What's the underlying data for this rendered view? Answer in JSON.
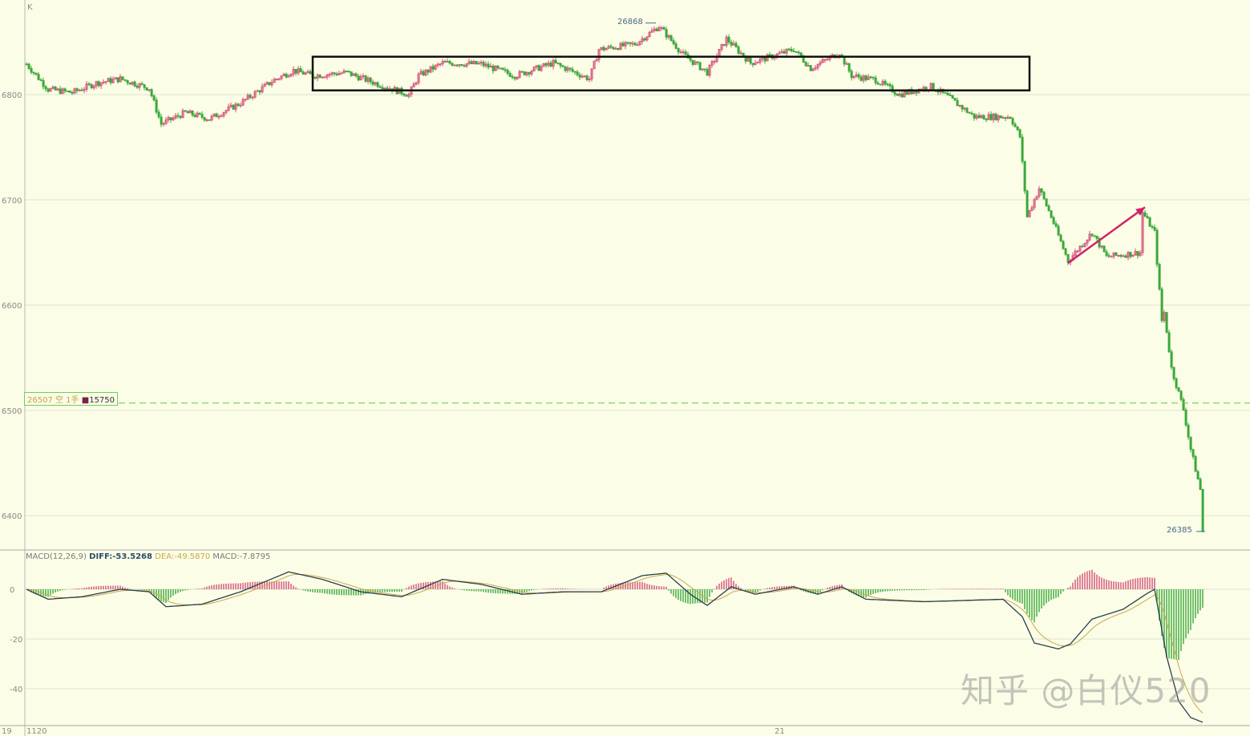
{
  "panel_label": "K",
  "watermark": "知乎 @白仪520",
  "position_marker": {
    "price_text": "26507",
    "side_text": "空 1手",
    "value_text": "15750",
    "price": 26507
  },
  "macd_legend": {
    "name": "MACD(12,26,9)",
    "diff": "DIFF:-53.5268",
    "dea": "DEA:-49.5870",
    "macd": "MACD:-7.8795"
  },
  "x_labels": [
    "19",
    "1120",
    "21"
  ],
  "colors": {
    "background": "#fbfde6",
    "up": "#d4507a",
    "down": "#3aa83a",
    "diff": "#2b3f4f",
    "dea": "#c9a94a",
    "cost_line": "#6ccf5c",
    "box": "#111111",
    "arrow": "#d0206a"
  },
  "chart_data": [
    {
      "type": "candlestick",
      "title": "",
      "y_ticks": [
        "6800",
        "6700",
        "6600",
        "6500",
        "6400"
      ],
      "y_tick_values": [
        26800,
        26700,
        26600,
        26500,
        26400
      ],
      "ylim": [
        26365,
        26890
      ],
      "x_unit": "bar index",
      "xlim": [
        0,
        490
      ],
      "high_label": "26868",
      "low_label": "26385",
      "high_value": 26868,
      "low_value": 26385,
      "close_path": [
        [
          0,
          26829
        ],
        [
          9,
          26805
        ],
        [
          19,
          26802
        ],
        [
          29,
          26811
        ],
        [
          39,
          26815
        ],
        [
          51,
          26806
        ],
        [
          56,
          26772
        ],
        [
          66,
          26783
        ],
        [
          76,
          26777
        ],
        [
          89,
          26792
        ],
        [
          103,
          26814
        ],
        [
          111,
          26823
        ],
        [
          119,
          26818
        ],
        [
          133,
          26821
        ],
        [
          146,
          26810
        ],
        [
          159,
          26800
        ],
        [
          163,
          26818
        ],
        [
          173,
          26830
        ],
        [
          189,
          26829
        ],
        [
          203,
          26818
        ],
        [
          219,
          26830
        ],
        [
          234,
          26815
        ],
        [
          238,
          26843
        ],
        [
          253,
          26848
        ],
        [
          263,
          26865
        ],
        [
          273,
          26838
        ],
        [
          283,
          26821
        ],
        [
          291,
          26853
        ],
        [
          301,
          26830
        ],
        [
          319,
          26843
        ],
        [
          326,
          26825
        ],
        [
          338,
          26840
        ],
        [
          343,
          26818
        ],
        [
          353,
          26814
        ],
        [
          363,
          26800
        ],
        [
          376,
          26808
        ],
        [
          383,
          26798
        ],
        [
          394,
          26779
        ],
        [
          409,
          26779
        ],
        [
          413,
          26760
        ],
        [
          416,
          26684
        ],
        [
          421,
          26711
        ],
        [
          426,
          26684
        ],
        [
          433,
          26642
        ],
        [
          443,
          26669
        ],
        [
          449,
          26646
        ],
        [
          463,
          26650
        ],
        [
          464,
          26688
        ],
        [
          469,
          26669
        ],
        [
          472,
          26585
        ],
        [
          473,
          26593
        ],
        [
          476,
          26540
        ],
        [
          481,
          26501
        ],
        [
          484,
          26463
        ],
        [
          488,
          26425
        ],
        [
          489,
          26385
        ]
      ],
      "annotations": {
        "box": {
          "bar_from": 119,
          "bar_to": 417,
          "price_top": 26836,
          "price_bottom": 26804
        },
        "arrow": {
          "bar_from": 433,
          "price_from": 26640,
          "bar_to": 465,
          "price_to": 26693
        }
      }
    },
    {
      "type": "line",
      "title": "MACD(12,26,9)",
      "y_ticks": [
        "0",
        "-20",
        "-40"
      ],
      "y_tick_values": [
        0,
        -20,
        -40
      ],
      "ylim": [
        -55,
        15
      ],
      "diff_path": [
        [
          0,
          0
        ],
        [
          9,
          -4
        ],
        [
          23,
          -3
        ],
        [
          39,
          0
        ],
        [
          51,
          -1
        ],
        [
          58,
          -7
        ],
        [
          73,
          -6
        ],
        [
          89,
          -1
        ],
        [
          109,
          7
        ],
        [
          123,
          4
        ],
        [
          139,
          -1
        ],
        [
          156,
          -3
        ],
        [
          173,
          4
        ],
        [
          189,
          2
        ],
        [
          206,
          -2
        ],
        [
          223,
          -1
        ],
        [
          239,
          -1
        ],
        [
          256,
          5.5
        ],
        [
          266,
          6.5
        ],
        [
          276,
          -2
        ],
        [
          283,
          -6.5
        ],
        [
          293,
          1
        ],
        [
          303,
          -2
        ],
        [
          319,
          1
        ],
        [
          329,
          -2
        ],
        [
          339,
          1
        ],
        [
          349,
          -4
        ],
        [
          373,
          -5
        ],
        [
          406,
          -4
        ],
        [
          414,
          -11
        ],
        [
          419,
          -21.6
        ],
        [
          429,
          -24
        ],
        [
          434,
          -22
        ],
        [
          443,
          -12
        ],
        [
          456,
          -8
        ],
        [
          466,
          -1.6
        ],
        [
          469,
          0
        ],
        [
          474,
          -27
        ],
        [
          479,
          -45
        ],
        [
          484,
          -51.6
        ],
        [
          489,
          -53.5
        ]
      ]
    }
  ]
}
